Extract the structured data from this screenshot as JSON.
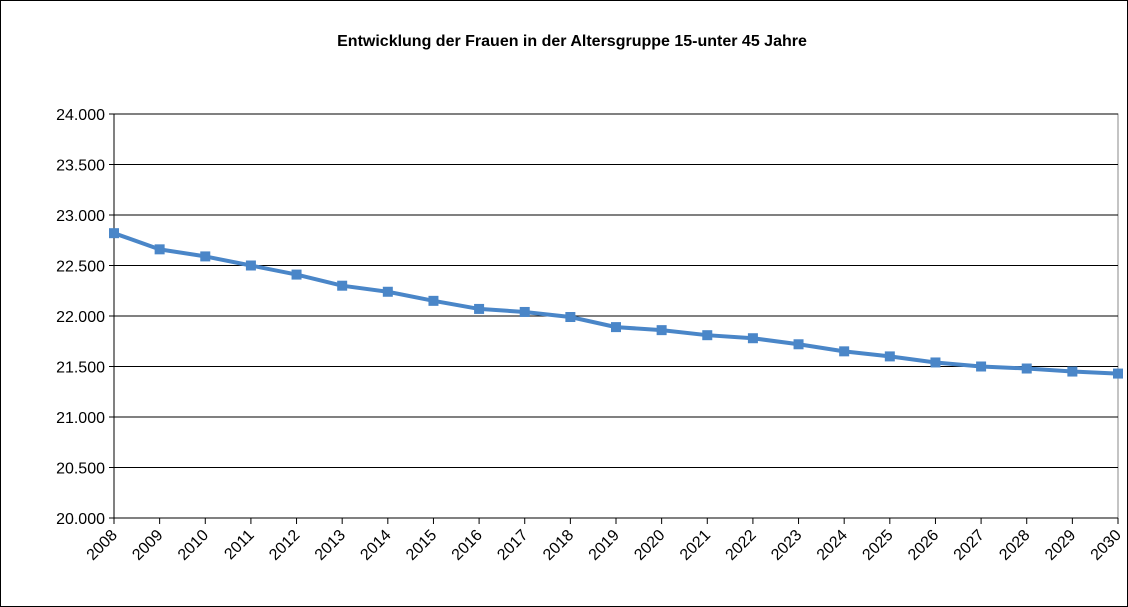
{
  "chart_data": {
    "type": "line",
    "title": "Entwicklung der Frauen in der Altersgruppe 15-unter 45 Jahre",
    "categories": [
      "2008",
      "2009",
      "2010",
      "2011",
      "2012",
      "2013",
      "2014",
      "2015",
      "2016",
      "2017",
      "2018",
      "2019",
      "2020",
      "2021",
      "2022",
      "2023",
      "2024",
      "2025",
      "2026",
      "2027",
      "2028",
      "2029",
      "2030"
    ],
    "series": [
      {
        "name": null,
        "color": "#4a86c8",
        "values": [
          22820,
          22660,
          22590,
          22500,
          22410,
          22300,
          22240,
          22150,
          22070,
          22040,
          21990,
          21890,
          21860,
          21810,
          21780,
          21720,
          21650,
          21600,
          21540,
          21500,
          21480,
          21450,
          21430
        ]
      }
    ],
    "ylim": [
      20000,
      24000
    ],
    "yticks": [
      {
        "value": 20000,
        "label": "20.000"
      },
      {
        "value": 20500,
        "label": "20.500"
      },
      {
        "value": 21000,
        "label": "21.000"
      },
      {
        "value": 21500,
        "label": "21.500"
      },
      {
        "value": 22000,
        "label": "22.000"
      },
      {
        "value": 22500,
        "label": "22.500"
      },
      {
        "value": 23000,
        "label": "23.000"
      },
      {
        "value": 23500,
        "label": "23.500"
      },
      {
        "value": 24000,
        "label": "24.000"
      }
    ],
    "grid": true
  }
}
